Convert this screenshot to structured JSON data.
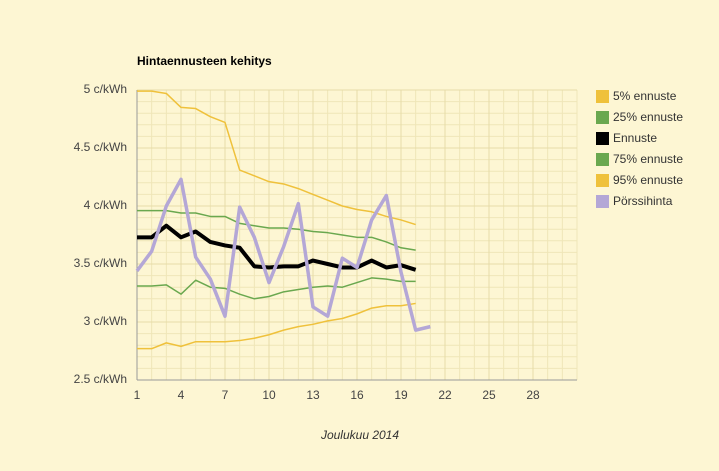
{
  "chart_data": {
    "type": "line",
    "title": "Hintaennusteen kehitys",
    "x_label": "Joulukuu 2014",
    "x": [
      1,
      2,
      3,
      4,
      5,
      6,
      7,
      8,
      9,
      10,
      11,
      12,
      13,
      14,
      15,
      16,
      17,
      18,
      19,
      20,
      21
    ],
    "xlim": [
      1,
      31
    ],
    "xticks": [
      1,
      4,
      7,
      10,
      13,
      16,
      19,
      22,
      25,
      28
    ],
    "ylim": [
      2.5,
      5
    ],
    "yticks": [
      {
        "value": 2.5,
        "label": "2.5 c/kWh"
      },
      {
        "value": 3,
        "label": "3 c/kWh"
      },
      {
        "value": 3.5,
        "label": "3.5 c/kWh"
      },
      {
        "value": 4,
        "label": "4 c/kWh"
      },
      {
        "value": 4.5,
        "label": "4.5 c/kWh"
      },
      {
        "value": 5,
        "label": "5 c/kWh"
      }
    ],
    "grid": true,
    "minor_grid": true,
    "legend": "right",
    "series": [
      {
        "name": "5% ennuste",
        "color": "#efc13b",
        "line_width": 1.5,
        "values": [
          2.77,
          2.77,
          2.82,
          2.79,
          2.83,
          2.83,
          2.83,
          2.84,
          2.86,
          2.89,
          2.93,
          2.96,
          2.98,
          3.01,
          3.03,
          3.07,
          3.12,
          3.14,
          3.14,
          3.16,
          null
        ]
      },
      {
        "name": "25% ennuste",
        "color": "#6aa84f",
        "line_width": 1.5,
        "values": [
          3.31,
          3.31,
          3.32,
          3.24,
          3.36,
          3.3,
          3.29,
          3.24,
          3.2,
          3.22,
          3.26,
          3.28,
          3.3,
          3.31,
          3.3,
          3.34,
          3.38,
          3.37,
          3.35,
          3.35,
          null
        ]
      },
      {
        "name": "Ennuste",
        "color": "#000000",
        "line_width": 4,
        "values": [
          3.73,
          3.73,
          3.83,
          3.73,
          3.78,
          3.69,
          3.66,
          3.64,
          3.48,
          3.47,
          3.48,
          3.48,
          3.53,
          3.5,
          3.47,
          3.47,
          3.53,
          3.47,
          3.49,
          3.45,
          null
        ]
      },
      {
        "name": "75% ennuste",
        "color": "#6aa84f",
        "line_width": 1.5,
        "values": [
          3.96,
          3.96,
          3.96,
          3.94,
          3.94,
          3.91,
          3.91,
          3.85,
          3.83,
          3.81,
          3.81,
          3.8,
          3.78,
          3.77,
          3.75,
          3.73,
          3.73,
          3.69,
          3.64,
          3.62,
          null
        ]
      },
      {
        "name": "95% ennuste",
        "color": "#efc13b",
        "line_width": 1.5,
        "values": [
          4.99,
          4.99,
          4.97,
          4.85,
          4.84,
          4.77,
          4.72,
          4.31,
          4.26,
          4.21,
          4.19,
          4.15,
          4.1,
          4.05,
          4.0,
          3.97,
          3.95,
          3.91,
          3.88,
          3.84,
          null
        ]
      },
      {
        "name": "Pörssihinta",
        "color": "#b4a7d6",
        "line_width": 3.5,
        "values": [
          3.44,
          3.61,
          4.0,
          4.23,
          3.56,
          3.37,
          3.05,
          3.99,
          3.73,
          3.34,
          3.65,
          4.02,
          3.13,
          3.05,
          3.55,
          3.47,
          3.88,
          4.09,
          3.43,
          2.93,
          2.96
        ]
      }
    ]
  }
}
